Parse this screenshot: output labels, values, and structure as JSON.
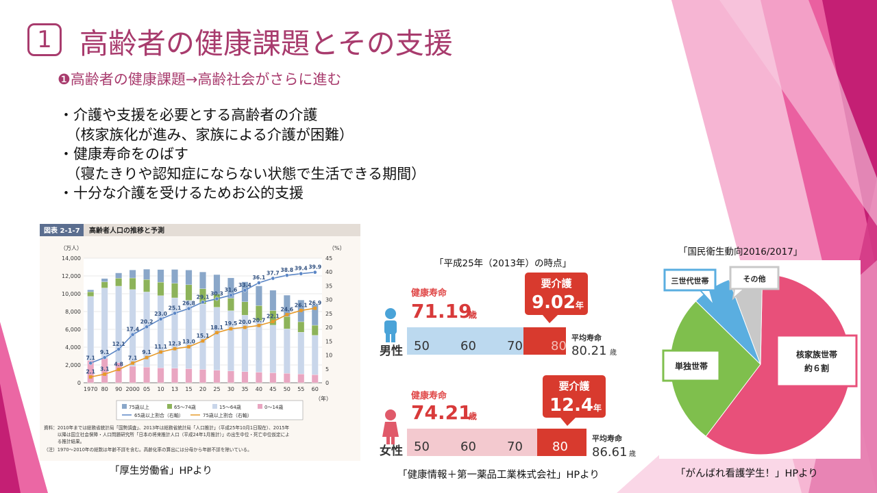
{
  "slide": {
    "number": "1",
    "title": "高齢者の健康課題とその支援",
    "subtitle": "❶高齢者の健康課題→高齢社会がさらに進む",
    "bullets": [
      "・介護や支援を必要とする高齢者の介護",
      "　（核家族化が進み、家族による介護が困難）",
      "・健康寿命をのばす",
      "　（寝たきりや認知症にならない状態で生活できる期間）",
      "・十分な介護を受けるためお公的支援"
    ]
  },
  "colors": {
    "accent": "#a83b6d",
    "pink": "#e8508a",
    "deep": "#c41f74"
  },
  "chart_data": [
    {
      "type": "bar",
      "figure_label": "図表 2-1-7",
      "title": "高齢者人口の推移と予測",
      "y_left_unit": "（万人）",
      "y_right_unit": "（%）",
      "x_unit": "（年）",
      "left_ticks": [
        "0",
        "2,000",
        "4,000",
        "6,000",
        "8,000",
        "10,000",
        "12,000",
        "14,000"
      ],
      "right_ticks": [
        "0",
        "5",
        "10",
        "15",
        "20",
        "25",
        "30",
        "35",
        "40",
        "45"
      ],
      "categories": [
        "1970",
        "80",
        "90",
        "2000",
        "05",
        "10",
        "13",
        "15",
        "20",
        "25",
        "30",
        "35",
        "40",
        "45",
        "50",
        "55",
        "60"
      ],
      "ylim_left": [
        0,
        14000
      ],
      "ylim_right": [
        0,
        45
      ],
      "series": [
        {
          "name": "0～14歳",
          "color": "#e9a6c1",
          "values": [
            2500,
            2750,
            2250,
            1850,
            1760,
            1680,
            1640,
            1580,
            1500,
            1410,
            1320,
            1250,
            1190,
            1120,
            1050,
            980,
            910
          ]
        },
        {
          "name": "15～64歳",
          "color": "#c9d6ea",
          "values": [
            7200,
            7900,
            8600,
            8620,
            8440,
            8100,
            7900,
            7680,
            7340,
            7080,
            6770,
            6340,
            5790,
            5350,
            5000,
            4700,
            4420
          ]
        },
        {
          "name": "65～74歳",
          "color": "#8db35a",
          "values": [
            520,
            690,
            890,
            1300,
            1400,
            1520,
            1630,
            1750,
            1730,
            1480,
            1410,
            1500,
            1680,
            1640,
            1380,
            1170,
            1130
          ]
        },
        {
          "name": "75歳以上",
          "color": "#8aa7c9",
          "values": [
            220,
            370,
            600,
            900,
            1160,
            1420,
            1560,
            1650,
            1880,
            2180,
            2280,
            2250,
            2220,
            2280,
            2410,
            2450,
            2340
          ]
        }
      ],
      "lines": [
        {
          "name": "65歳以上割合（右軸）",
          "color": "#5b86c5",
          "values": [
            7.1,
            9.1,
            12.1,
            17.4,
            20.2,
            23.0,
            25.1,
            26.8,
            29.1,
            30.3,
            31.6,
            33.4,
            36.1,
            37.7,
            38.8,
            39.4,
            39.9
          ]
        },
        {
          "name": "75歳以上割合（右軸）",
          "color": "#e69a2a",
          "values": [
            2.1,
            3.1,
            4.8,
            7.1,
            9.1,
            11.1,
            12.3,
            13.0,
            15.1,
            18.1,
            19.5,
            20.0,
            20.7,
            22.1,
            24.6,
            26.1,
            26.9
          ]
        }
      ],
      "notes": [
        "資料：2010年までは総務省統計局「国勢調査」、2013年は総務省統計局「人口推計」（平成25年10月1日現在）、2015年",
        "　　　以降は国立社会保障・人口問題研究所「日本の将来推計人口（平成24年1月推計）」の出生中位・死亡中位仮定によ",
        "　　　る推計結果。",
        "（注）1970～2010年の総数は年齢不詳を含む。高齢化率の算出には分母から年齢不詳を除いている。"
      ],
      "source": "「厚生労働省」HPより"
    },
    {
      "type": "bar",
      "heading": "「平成25年（2013年）の時点」",
      "ticks": [
        "50",
        "60",
        "70",
        "80"
      ],
      "male": {
        "label": "男性",
        "healthy_label": "健康寿命",
        "healthy": "71.19",
        "unit": "歳",
        "care_label": "要介護",
        "care": "9.02",
        "care_unit": "年",
        "avg_label": "平均寿命",
        "avg": "80.21",
        "avg_unit": "歳"
      },
      "female": {
        "label": "女性",
        "healthy_label": "健康寿命",
        "healthy": "74.21",
        "unit": "歳",
        "care_label": "要介護",
        "care": "12.4",
        "care_unit": "年",
        "avg_label": "平均寿命",
        "avg": "86.61",
        "avg_unit": "歳"
      },
      "source": "「健康情報＋第一薬品工業株式会社」HPより"
    },
    {
      "type": "pie",
      "heading": "「国民衛生動向2016/2017」",
      "slices": [
        {
          "label": "核家族世帯",
          "sublabel": "約６割",
          "value": 60,
          "color": "#e8507a"
        },
        {
          "label": "単独世帯",
          "value": 27,
          "color": "#7fbf4d"
        },
        {
          "label": "三世代世帯",
          "value": 7,
          "color": "#5aaee0"
        },
        {
          "label": "その他",
          "value": 6,
          "color": "#c8c8c8"
        }
      ],
      "source": "「がんばれ看護学生！」HPより"
    }
  ]
}
